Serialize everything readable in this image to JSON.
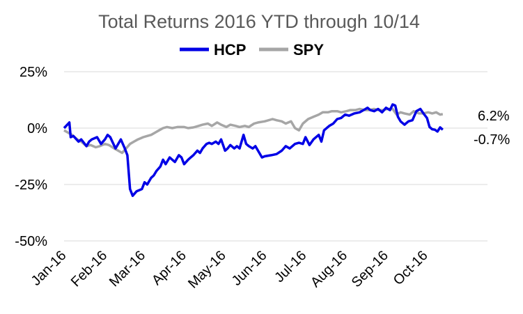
{
  "chart_data": {
    "type": "line",
    "title": "Total Returns 2016 YTD through 10/14",
    "xlabel": "",
    "ylabel": "",
    "ylim": [
      -50,
      25
    ],
    "yticks": [
      "25%",
      "0%",
      "-25%",
      "-50%"
    ],
    "ytick_values": [
      25,
      0,
      -25,
      -50
    ],
    "x_tick_labels": [
      "Jan-16",
      "Feb-16",
      "Mar-16",
      "Apr-16",
      "May-16",
      "Jun-16",
      "Jul-16",
      "Aug-16",
      "Sep-16",
      "Oct-16"
    ],
    "x_tick_dates": [
      "2016-01-01",
      "2016-02-01",
      "2016-03-01",
      "2016-04-01",
      "2016-05-01",
      "2016-06-01",
      "2016-07-01",
      "2016-08-01",
      "2016-09-01",
      "2016-10-01"
    ],
    "x_range": [
      "2016-01-01",
      "2016-10-31"
    ],
    "grid": "horizontal",
    "legend_position": "top",
    "end_labels": [
      "6.2%",
      "-0.7%"
    ],
    "series": [
      {
        "name": "HCP",
        "color": "#0000e6",
        "points": [
          [
            "2016-01-01",
            0
          ],
          [
            "2016-01-05",
            2.5
          ],
          [
            "2016-01-06",
            -4
          ],
          [
            "2016-01-08",
            -3.5
          ],
          [
            "2016-01-12",
            -6
          ],
          [
            "2016-01-14",
            -5
          ],
          [
            "2016-01-18",
            -8
          ],
          [
            "2016-01-20",
            -6
          ],
          [
            "2016-01-22",
            -5
          ],
          [
            "2016-01-26",
            -4
          ],
          [
            "2016-01-29",
            -7
          ],
          [
            "2016-02-01",
            -5
          ],
          [
            "2016-02-03",
            -3
          ],
          [
            "2016-02-05",
            -4
          ],
          [
            "2016-02-09",
            -9
          ],
          [
            "2016-02-11",
            -7
          ],
          [
            "2016-02-13",
            -5
          ],
          [
            "2016-02-16",
            -9
          ],
          [
            "2016-02-18",
            -12
          ],
          [
            "2016-02-20",
            -27
          ],
          [
            "2016-02-22",
            -30
          ],
          [
            "2016-02-25",
            -28
          ],
          [
            "2016-02-29",
            -27
          ],
          [
            "2016-03-02",
            -24
          ],
          [
            "2016-03-04",
            -25
          ],
          [
            "2016-03-07",
            -22
          ],
          [
            "2016-03-09",
            -21
          ],
          [
            "2016-03-11",
            -19
          ],
          [
            "2016-03-14",
            -17
          ],
          [
            "2016-03-16",
            -14
          ],
          [
            "2016-03-18",
            -16
          ],
          [
            "2016-03-21",
            -13
          ],
          [
            "2016-03-23",
            -14
          ],
          [
            "2016-03-25",
            -15
          ],
          [
            "2016-03-28",
            -12
          ],
          [
            "2016-03-30",
            -13
          ],
          [
            "2016-04-01",
            -16
          ],
          [
            "2016-04-04",
            -14
          ],
          [
            "2016-04-06",
            -13
          ],
          [
            "2016-04-08",
            -12
          ],
          [
            "2016-04-11",
            -10
          ],
          [
            "2016-04-13",
            -11
          ],
          [
            "2016-04-15",
            -9
          ],
          [
            "2016-04-18",
            -7
          ],
          [
            "2016-04-20",
            -6.5
          ],
          [
            "2016-04-22",
            -7
          ],
          [
            "2016-04-25",
            -6
          ],
          [
            "2016-04-27",
            -7
          ],
          [
            "2016-04-29",
            -5
          ],
          [
            "2016-05-02",
            -10
          ],
          [
            "2016-05-04",
            -9
          ],
          [
            "2016-05-06",
            -7.5
          ],
          [
            "2016-05-09",
            -9
          ],
          [
            "2016-05-11",
            -8
          ],
          [
            "2016-05-13",
            -9
          ],
          [
            "2016-05-16",
            -3
          ],
          [
            "2016-05-18",
            -7
          ],
          [
            "2016-05-20",
            -8
          ],
          [
            "2016-05-23",
            -9
          ],
          [
            "2016-05-25",
            -8
          ],
          [
            "2016-05-27",
            -10
          ],
          [
            "2016-05-30",
            -13
          ],
          [
            "2016-06-01",
            -12.5
          ],
          [
            "2016-06-06",
            -12
          ],
          [
            "2016-06-10",
            -11.5
          ],
          [
            "2016-06-14",
            -10
          ],
          [
            "2016-06-17",
            -8
          ],
          [
            "2016-06-20",
            -9
          ],
          [
            "2016-06-24",
            -7
          ],
          [
            "2016-06-27",
            -6.5
          ],
          [
            "2016-06-30",
            -7
          ],
          [
            "2016-07-02",
            -4
          ],
          [
            "2016-07-05",
            -7.5
          ],
          [
            "2016-07-08",
            -5
          ],
          [
            "2016-07-12",
            -3
          ],
          [
            "2016-07-14",
            -6
          ],
          [
            "2016-07-16",
            -1
          ],
          [
            "2016-07-20",
            1
          ],
          [
            "2016-07-23",
            2
          ],
          [
            "2016-07-26",
            4
          ],
          [
            "2016-07-29",
            4.5
          ],
          [
            "2016-08-01",
            6
          ],
          [
            "2016-08-04",
            5.5
          ],
          [
            "2016-08-08",
            6.5
          ],
          [
            "2016-08-12",
            7
          ],
          [
            "2016-08-15",
            8
          ],
          [
            "2016-08-18",
            9
          ],
          [
            "2016-08-20",
            8
          ],
          [
            "2016-08-23",
            7.5
          ],
          [
            "2016-08-26",
            8.5
          ],
          [
            "2016-08-29",
            7
          ],
          [
            "2016-09-01",
            9
          ],
          [
            "2016-09-04",
            8
          ],
          [
            "2016-09-06",
            10.5
          ],
          [
            "2016-09-08",
            10
          ],
          [
            "2016-09-10",
            5
          ],
          [
            "2016-09-12",
            3
          ],
          [
            "2016-09-15",
            1.5
          ],
          [
            "2016-09-18",
            3
          ],
          [
            "2016-09-21",
            3.5
          ],
          [
            "2016-09-24",
            7.5
          ],
          [
            "2016-09-27",
            8.5
          ],
          [
            "2016-09-30",
            6
          ],
          [
            "2016-10-02",
            4.5
          ],
          [
            "2016-10-04",
            0.5
          ],
          [
            "2016-10-06",
            -0.5
          ],
          [
            "2016-10-08",
            -0.7
          ],
          [
            "2016-10-10",
            -1.5
          ],
          [
            "2016-10-12",
            0.3
          ],
          [
            "2016-10-14",
            -0.7
          ]
        ]
      },
      {
        "name": "SPY",
        "color": "#a6a6a6",
        "points": [
          [
            "2016-01-01",
            -1
          ],
          [
            "2016-01-04",
            -2
          ],
          [
            "2016-01-07",
            -3
          ],
          [
            "2016-01-11",
            -5
          ],
          [
            "2016-01-14",
            -6
          ],
          [
            "2016-01-18",
            -8
          ],
          [
            "2016-01-21",
            -7.5
          ],
          [
            "2016-01-25",
            -8.5
          ],
          [
            "2016-01-28",
            -8
          ],
          [
            "2016-02-01",
            -7
          ],
          [
            "2016-02-04",
            -7.5
          ],
          [
            "2016-02-08",
            -9
          ],
          [
            "2016-02-11",
            -10
          ],
          [
            "2016-02-14",
            -11
          ],
          [
            "2016-02-17",
            -9
          ],
          [
            "2016-02-20",
            -7
          ],
          [
            "2016-02-23",
            -6
          ],
          [
            "2016-02-26",
            -5
          ],
          [
            "2016-03-01",
            -4
          ],
          [
            "2016-03-04",
            -3.5
          ],
          [
            "2016-03-07",
            -3
          ],
          [
            "2016-03-10",
            -2
          ],
          [
            "2016-03-13",
            -1
          ],
          [
            "2016-03-16",
            0
          ],
          [
            "2016-03-19",
            0.5
          ],
          [
            "2016-03-23",
            0
          ],
          [
            "2016-03-27",
            0.5
          ],
          [
            "2016-04-01",
            0.5
          ],
          [
            "2016-04-04",
            0
          ],
          [
            "2016-04-08",
            0.3
          ],
          [
            "2016-04-12",
            1
          ],
          [
            "2016-04-15",
            1.5
          ],
          [
            "2016-04-19",
            2
          ],
          [
            "2016-04-22",
            1
          ],
          [
            "2016-04-26",
            2.5
          ],
          [
            "2016-04-29",
            1.5
          ],
          [
            "2016-05-03",
            0.5
          ],
          [
            "2016-05-06",
            1.5
          ],
          [
            "2016-05-10",
            1
          ],
          [
            "2016-05-13",
            0.5
          ],
          [
            "2016-05-17",
            1
          ],
          [
            "2016-05-20",
            0.5
          ],
          [
            "2016-05-24",
            2
          ],
          [
            "2016-05-27",
            2.5
          ],
          [
            "2016-06-01",
            3
          ],
          [
            "2016-06-07",
            4
          ],
          [
            "2016-06-10",
            3.5
          ],
          [
            "2016-06-14",
            3
          ],
          [
            "2016-06-17",
            2
          ],
          [
            "2016-06-21",
            3
          ],
          [
            "2016-06-24",
            0
          ],
          [
            "2016-06-27",
            -1
          ],
          [
            "2016-06-30",
            2
          ],
          [
            "2016-07-04",
            4
          ],
          [
            "2016-07-08",
            5
          ],
          [
            "2016-07-12",
            6
          ],
          [
            "2016-07-15",
            7
          ],
          [
            "2016-07-19",
            7
          ],
          [
            "2016-07-22",
            7.5
          ],
          [
            "2016-07-26",
            7.5
          ],
          [
            "2016-07-29",
            7
          ],
          [
            "2016-08-02",
            7.5
          ],
          [
            "2016-08-05",
            8
          ],
          [
            "2016-08-09",
            8
          ],
          [
            "2016-08-12",
            8.5
          ],
          [
            "2016-08-16",
            8
          ],
          [
            "2016-08-19",
            8
          ],
          [
            "2016-08-23",
            8.5
          ],
          [
            "2016-08-26",
            8
          ],
          [
            "2016-08-30",
            8
          ],
          [
            "2016-09-02",
            8.5
          ],
          [
            "2016-09-06",
            8.5
          ],
          [
            "2016-09-09",
            6
          ],
          [
            "2016-09-12",
            7
          ],
          [
            "2016-09-15",
            6.5
          ],
          [
            "2016-09-19",
            6
          ],
          [
            "2016-09-22",
            7.5
          ],
          [
            "2016-09-26",
            6.5
          ],
          [
            "2016-09-29",
            6.5
          ],
          [
            "2016-10-03",
            7
          ],
          [
            "2016-10-06",
            6.5
          ],
          [
            "2016-10-09",
            7
          ],
          [
            "2016-10-12",
            6
          ],
          [
            "2016-10-14",
            6.2
          ]
        ]
      }
    ]
  }
}
